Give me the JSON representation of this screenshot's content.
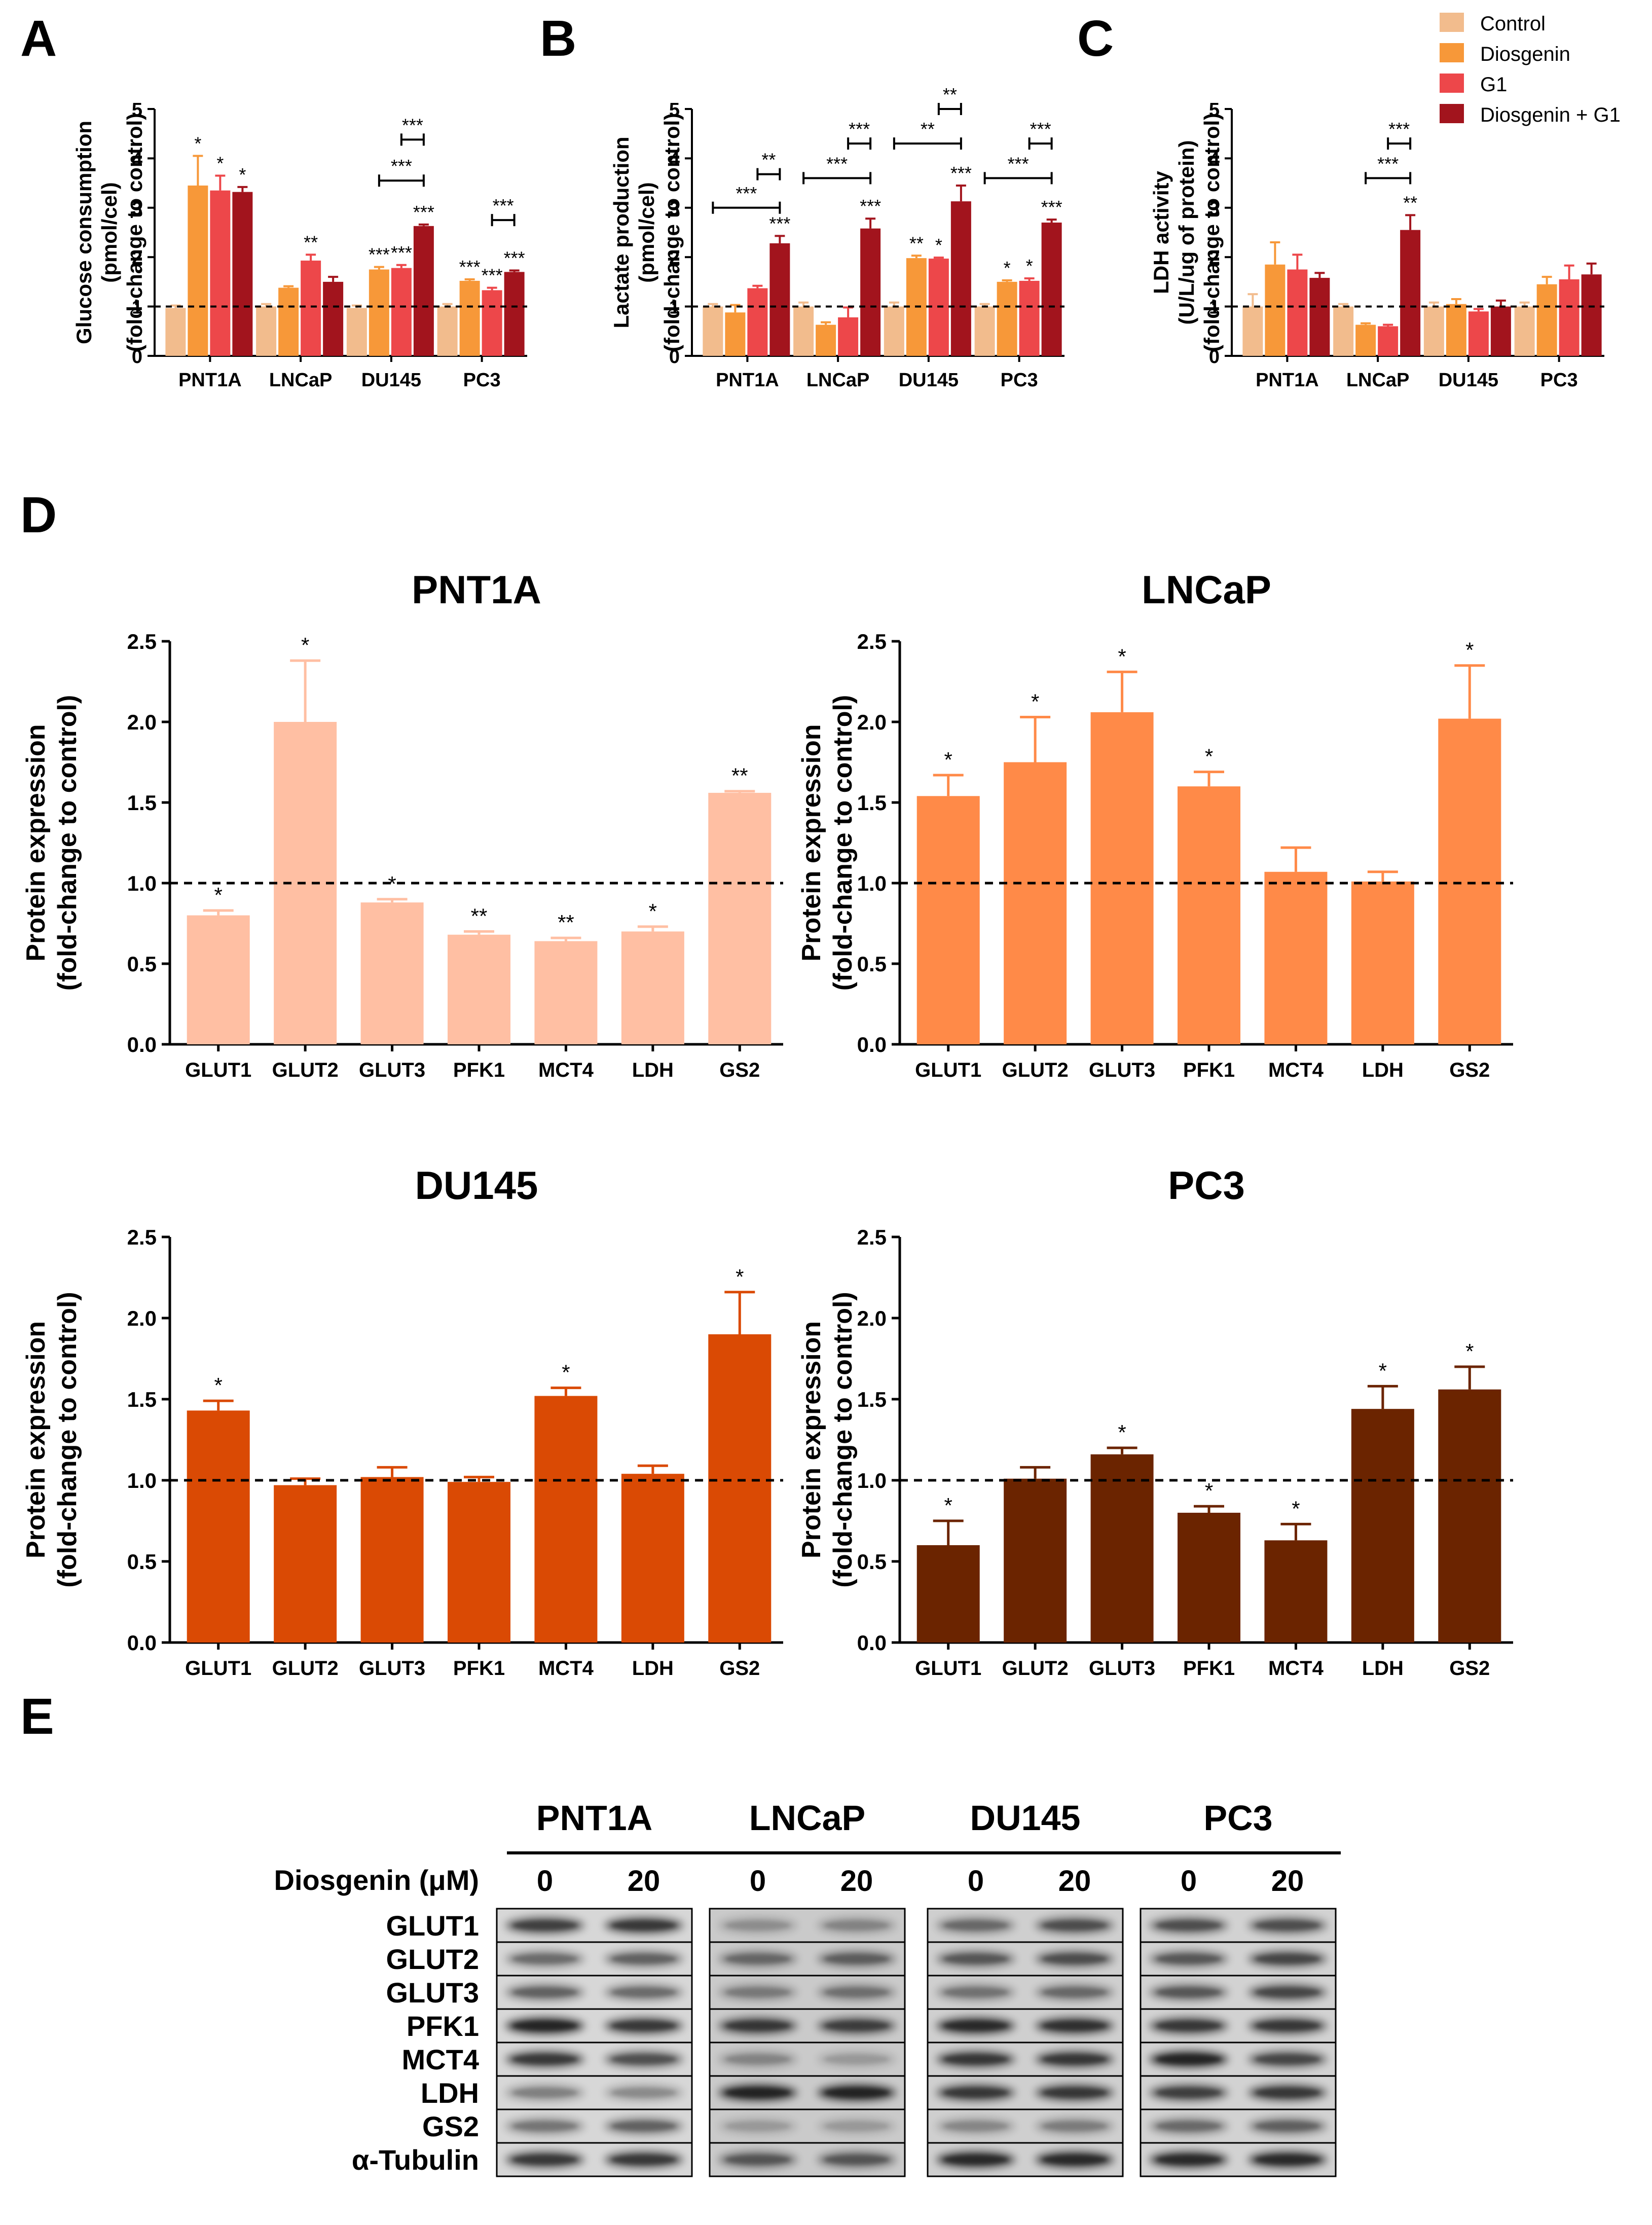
{
  "colors": {
    "control": "#F2BC8D",
    "diosgenin": "#F79839",
    "g1": "#ED474A",
    "diosgenin_g1": "#A2141D",
    "pnt1a": "#FFBFA3",
    "lncap": "#FF8A48",
    "du145": "#DA4A04",
    "pc3": "#6B2400"
  },
  "legend": [
    "Control",
    "Diosgenin",
    "G1",
    "Diosgenin + G1"
  ],
  "panels": {
    "A": "A",
    "B": "B",
    "C": "C",
    "D": "D",
    "E": "E"
  },
  "chart_data": [
    {
      "id": "A",
      "type": "bar",
      "ylabel_lines": [
        "Glucose consumption",
        "(pmol/cel)",
        "(fold-change to control)"
      ],
      "ylim": [
        0,
        5
      ],
      "yticks": [
        "0",
        "1",
        "2",
        "3",
        "4",
        "5"
      ],
      "reference_line": 1,
      "categories": [
        "PNT1A",
        "LNCaP",
        "DU145",
        "PC3"
      ],
      "series": [
        {
          "name": "Control",
          "values": [
            0.97,
            1.0,
            0.97,
            1.0
          ],
          "errors": [
            0.05,
            0.05,
            0.05,
            0.05
          ],
          "stars": [
            "",
            "",
            "",
            ""
          ]
        },
        {
          "name": "Diosgenin",
          "values": [
            3.45,
            1.38,
            1.75,
            1.52
          ],
          "errors": [
            0.6,
            0.03,
            0.05,
            0.03
          ],
          "stars": [
            "*",
            "",
            "***",
            "***"
          ]
        },
        {
          "name": "G1",
          "values": [
            3.35,
            1.93,
            1.78,
            1.33
          ],
          "errors": [
            0.3,
            0.12,
            0.06,
            0.05
          ],
          "stars": [
            "*",
            "**",
            "***",
            "***"
          ]
        },
        {
          "name": "Diosgenin + G1",
          "values": [
            3.32,
            1.5,
            2.63,
            1.7
          ],
          "errors": [
            0.1,
            0.1,
            0.03,
            0.03
          ],
          "stars": [
            "*",
            "",
            "***",
            "***"
          ]
        }
      ],
      "brackets": [
        {
          "group": 2,
          "from": 2,
          "to": 3,
          "level": 4.38,
          "label": "***"
        },
        {
          "group": 2,
          "from": 1,
          "to": 3,
          "level": 3.55,
          "label": "***"
        },
        {
          "group": 3,
          "from": 2,
          "to": 3,
          "level": 2.75,
          "label": "***"
        }
      ]
    },
    {
      "id": "B",
      "type": "bar",
      "ylabel_lines": [
        "Lactate production",
        "(pmol/cel)",
        "(fold-change to control)"
      ],
      "ylim": [
        0,
        5
      ],
      "yticks": [
        "0",
        "1",
        "2",
        "3",
        "4",
        "5"
      ],
      "reference_line": 1,
      "categories": [
        "PNT1A",
        "LNCaP",
        "DU145",
        "PC3"
      ],
      "series": [
        {
          "name": "Control",
          "values": [
            1.0,
            1.0,
            1.0,
            1.0
          ],
          "errors": [
            0.05,
            0.08,
            0.08,
            0.05
          ],
          "stars": [
            "",
            "",
            "",
            ""
          ]
        },
        {
          "name": "Diosgenin",
          "values": [
            0.88,
            0.63,
            1.98,
            1.5
          ],
          "errors": [
            0.15,
            0.05,
            0.05,
            0.03
          ],
          "stars": [
            "",
            "",
            "**",
            "*"
          ]
        },
        {
          "name": "G1",
          "values": [
            1.37,
            0.78,
            1.97,
            1.52
          ],
          "errors": [
            0.05,
            0.2,
            0.02,
            0.05
          ],
          "stars": [
            "",
            "",
            "*",
            "*"
          ]
        },
        {
          "name": "Diosgenin + G1",
          "values": [
            2.28,
            2.58,
            3.13,
            2.7
          ],
          "errors": [
            0.15,
            0.2,
            0.32,
            0.06
          ],
          "stars": [
            "***",
            "***",
            "***",
            "***"
          ]
        }
      ],
      "brackets": [
        {
          "group": 0,
          "from": 2,
          "to": 3,
          "level": 3.68,
          "label": "**"
        },
        {
          "group": 0,
          "from": 0,
          "to": 3,
          "level": 3.0,
          "label": "***"
        },
        {
          "group": 1,
          "from": 2,
          "to": 3,
          "level": 4.3,
          "label": "***"
        },
        {
          "group": 1,
          "from": 0,
          "to": 3,
          "level": 3.6,
          "label": "***"
        },
        {
          "group": 2,
          "from": 2,
          "to": 3,
          "level": 5.0,
          "label": "**"
        },
        {
          "group": 2,
          "from": 0,
          "to": 3,
          "level": 4.3,
          "label": "**"
        },
        {
          "group": 3,
          "from": 2,
          "to": 3,
          "level": 4.3,
          "label": "***"
        },
        {
          "group": 3,
          "from": 0,
          "to": 3,
          "level": 3.6,
          "label": "***"
        }
      ]
    },
    {
      "id": "C",
      "type": "bar",
      "ylabel_lines": [
        "LDH activity",
        "(U/L/ug of protein)",
        "(fold-change to control)"
      ],
      "ylim": [
        0,
        5
      ],
      "yticks": [
        "0",
        "1",
        "2",
        "3",
        "4",
        "5"
      ],
      "reference_line": 1,
      "categories": [
        "PNT1A",
        "LNCaP",
        "DU145",
        "PC3"
      ],
      "series": [
        {
          "name": "Control",
          "values": [
            1.0,
            1.0,
            1.0,
            1.0
          ],
          "errors": [
            0.25,
            0.05,
            0.08,
            0.08
          ],
          "stars": [
            "",
            "",
            "",
            ""
          ]
        },
        {
          "name": "Diosgenin",
          "values": [
            1.85,
            0.63,
            1.05,
            1.45
          ],
          "errors": [
            0.45,
            0.03,
            0.1,
            0.15
          ],
          "stars": [
            "",
            "",
            "",
            ""
          ]
        },
        {
          "name": "G1",
          "values": [
            1.75,
            0.6,
            0.9,
            1.55
          ],
          "errors": [
            0.3,
            0.03,
            0.05,
            0.28
          ],
          "stars": [
            "",
            "",
            "",
            ""
          ]
        },
        {
          "name": "Diosgenin + G1",
          "values": [
            1.58,
            2.55,
            1.0,
            1.65
          ],
          "errors": [
            0.1,
            0.3,
            0.12,
            0.22
          ],
          "stars": [
            "",
            "**",
            "",
            ""
          ]
        }
      ],
      "brackets": [
        {
          "group": 1,
          "from": 2,
          "to": 3,
          "level": 4.3,
          "label": "***"
        },
        {
          "group": 1,
          "from": 1,
          "to": 3,
          "level": 3.6,
          "label": "***"
        }
      ]
    },
    {
      "id": "D-PNT1A",
      "type": "bar",
      "title": "PNT1A",
      "ylabel_lines": [
        "Protein expression",
        "(fold-change to control)"
      ],
      "ylim": [
        0,
        2.5
      ],
      "yticks": [
        "0.0",
        "0.5",
        "1.0",
        "1.5",
        "2.0",
        "2.5"
      ],
      "reference_line": 1,
      "categories": [
        "GLUT1",
        "GLUT2",
        "GLUT3",
        "PFK1",
        "MCT4",
        "LDH",
        "GS2"
      ],
      "values": [
        0.8,
        2.0,
        0.88,
        0.68,
        0.64,
        0.7,
        1.56
      ],
      "errors": [
        0.03,
        0.38,
        0.02,
        0.02,
        0.02,
        0.03,
        0.01
      ],
      "stars": [
        "*",
        "*",
        "*",
        "**",
        "**",
        "*",
        "**"
      ],
      "color": "#FFBFA3"
    },
    {
      "id": "D-LNCaP",
      "type": "bar",
      "title": "LNCaP",
      "ylabel_lines": [
        "Protein expression",
        "(fold-change to control)"
      ],
      "ylim": [
        0,
        2.5
      ],
      "yticks": [
        "0.0",
        "0.5",
        "1.0",
        "1.5",
        "2.0",
        "2.5"
      ],
      "reference_line": 1,
      "categories": [
        "GLUT1",
        "GLUT2",
        "GLUT3",
        "PFK1",
        "MCT4",
        "LDH",
        "GS2"
      ],
      "values": [
        1.54,
        1.75,
        2.06,
        1.6,
        1.07,
        1.01,
        2.02
      ],
      "errors": [
        0.13,
        0.28,
        0.25,
        0.09,
        0.15,
        0.06,
        0.33
      ],
      "stars": [
        "*",
        "*",
        "*",
        "*",
        "",
        "",
        "*"
      ],
      "color": "#FF8A48"
    },
    {
      "id": "D-DU145",
      "type": "bar",
      "title": "DU145",
      "ylabel_lines": [
        "Protein expression",
        "(fold-change to control)"
      ],
      "ylim": [
        0,
        2.5
      ],
      "yticks": [
        "0.0",
        "0.5",
        "1.0",
        "1.5",
        "2.0",
        "2.5"
      ],
      "reference_line": 1,
      "categories": [
        "GLUT1",
        "GLUT2",
        "GLUT3",
        "PFK1",
        "MCT4",
        "LDH",
        "GS2"
      ],
      "values": [
        1.43,
        0.97,
        1.02,
        0.99,
        1.52,
        1.04,
        1.9
      ],
      "errors": [
        0.06,
        0.04,
        0.06,
        0.03,
        0.05,
        0.05,
        0.26
      ],
      "stars": [
        "*",
        "",
        "",
        "",
        "*",
        "",
        "*"
      ],
      "color": "#DA4A04"
    },
    {
      "id": "D-PC3",
      "type": "bar",
      "title": "PC3",
      "ylabel_lines": [
        "Protein expression",
        "(fold-change to control)"
      ],
      "ylim": [
        0,
        2.5
      ],
      "yticks": [
        "0.0",
        "0.5",
        "1.0",
        "1.5",
        "2.0",
        "2.5"
      ],
      "reference_line": 1,
      "categories": [
        "GLUT1",
        "GLUT2",
        "GLUT3",
        "PFK1",
        "MCT4",
        "LDH",
        "GS2"
      ],
      "values": [
        0.6,
        1.01,
        1.16,
        0.8,
        0.63,
        1.44,
        1.56
      ],
      "errors": [
        0.15,
        0.07,
        0.04,
        0.04,
        0.1,
        0.14,
        0.14
      ],
      "stars": [
        "*",
        "",
        "*",
        "*",
        "*",
        "*",
        "*"
      ],
      "color": "#6B2400"
    }
  ],
  "western_blot": {
    "cell_lines": [
      "PNT1A",
      "LNCaP",
      "DU145",
      "PC3"
    ],
    "treatment_label": "Diosgenin (μM)",
    "doses": [
      "0",
      "20"
    ],
    "proteins": [
      "GLUT1",
      "GLUT2",
      "GLUT3",
      "PFK1",
      "MCT4",
      "LDH",
      "GS2",
      "α-Tubulin"
    ]
  }
}
